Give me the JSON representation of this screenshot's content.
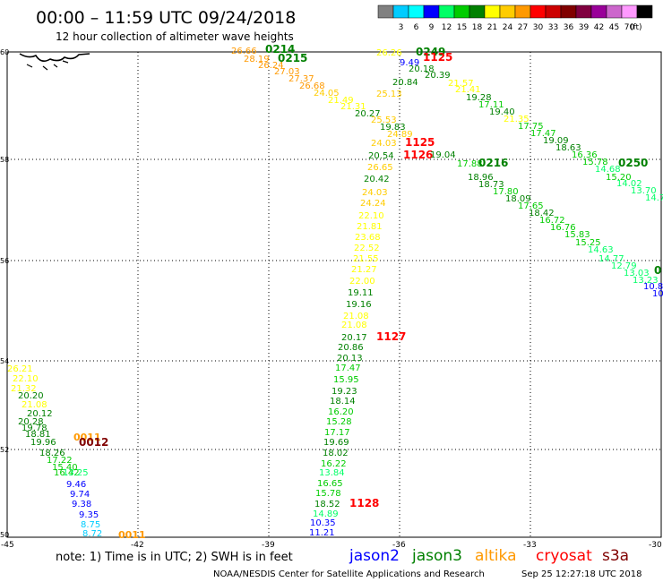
{
  "header": {
    "title": "00:00 – 11:59 UTC 09/24/2018",
    "subtitle": "12 hour collection of altimeter wave heights"
  },
  "colorbar": {
    "unit_label": "(ft)",
    "bins": [
      {
        "label": "",
        "color": "#808080"
      },
      {
        "label": "3",
        "color": "#00ccff"
      },
      {
        "label": "6",
        "color": "#00ffff"
      },
      {
        "label": "9",
        "color": "#0000ff"
      },
      {
        "label": "12",
        "color": "#00ff66"
      },
      {
        "label": "15",
        "color": "#00cc00"
      },
      {
        "label": "18",
        "color": "#008000"
      },
      {
        "label": "21",
        "color": "#ffff00"
      },
      {
        "label": "24",
        "color": "#ffcc00"
      },
      {
        "label": "27",
        "color": "#ff9900"
      },
      {
        "label": "30",
        "color": "#ff0000"
      },
      {
        "label": "33",
        "color": "#cc0000"
      },
      {
        "label": "36",
        "color": "#800000"
      },
      {
        "label": "39",
        "color": "#800040"
      },
      {
        "label": "42",
        "color": "#990099"
      },
      {
        "label": "45",
        "color": "#cc66cc"
      },
      {
        "label": "70",
        "color": "#ff99ff"
      },
      {
        "label": "",
        "color": "#000000"
      }
    ]
  },
  "map": {
    "lon_ticks": [
      "-45",
      "-42",
      "-39",
      "-36",
      "-33",
      "-30"
    ],
    "lat_ticks": [
      "60",
      "58",
      "56",
      "54",
      "52",
      "50"
    ],
    "grid": "dotted",
    "lon_range": [
      -45,
      -30
    ],
    "lat_range": [
      50,
      60
    ]
  },
  "tracks": [
    {
      "satellite": "saral/altika, jason3 (west track)",
      "time_labels": [
        {
          "text": "0011",
          "color": "#ff9900"
        },
        {
          "text": "0012",
          "color": "#800000"
        },
        {
          "text": "0011",
          "color": "#ff9900"
        }
      ],
      "values": [
        {
          "v": "26.21",
          "c": "#ffff00"
        },
        {
          "v": "22.10",
          "c": "#ffff00"
        },
        {
          "v": "21.32",
          "c": "#ffff00"
        },
        {
          "v": "20.20",
          "c": "#008000"
        },
        {
          "v": "21.08",
          "c": "#ffff00"
        },
        {
          "v": "20.12",
          "c": "#008000"
        },
        {
          "v": "20.28",
          "c": "#008000"
        },
        {
          "v": "19.78",
          "c": "#008000"
        },
        {
          "v": "18.81",
          "c": "#008000"
        },
        {
          "v": "19.96",
          "c": "#008000"
        },
        {
          "v": "18.26",
          "c": "#008000"
        },
        {
          "v": "17.22",
          "c": "#00cc00"
        },
        {
          "v": "15.40",
          "c": "#00cc00"
        },
        {
          "v": "16.42",
          "c": "#00cc00"
        },
        {
          "v": "13.25",
          "c": "#00ff66"
        },
        {
          "v": "9.46",
          "c": "#0000ff"
        },
        {
          "v": "9.74",
          "c": "#0000ff"
        },
        {
          "v": "9.38",
          "c": "#0000ff"
        },
        {
          "v": "9.35",
          "c": "#0000ff"
        },
        {
          "v": "8.75",
          "c": "#00ccff"
        },
        {
          "v": "8.72",
          "c": "#00ccff"
        }
      ]
    },
    {
      "satellite": "jason3, altika (central track)",
      "time_labels": [
        {
          "text": "0214",
          "color": "#008000"
        },
        {
          "text": "0215",
          "color": "#008000"
        }
      ],
      "values": [
        {
          "v": "26.66",
          "c": "#ff9900"
        },
        {
          "v": "28.19",
          "c": "#ff9900"
        },
        {
          "v": "26.24",
          "c": "#ff9900"
        },
        {
          "v": "27.03",
          "c": "#ff9900"
        },
        {
          "v": "27.37",
          "c": "#ff9900"
        },
        {
          "v": "26.68",
          "c": "#ff9900"
        },
        {
          "v": "24.05",
          "c": "#ffcc00"
        },
        {
          "v": "21.49",
          "c": "#ffff00"
        },
        {
          "v": "21.31",
          "c": "#ffff00"
        },
        {
          "v": "20.27",
          "c": "#008000"
        },
        {
          "v": "25.53",
          "c": "#ffcc00"
        },
        {
          "v": "19.83",
          "c": "#008000"
        },
        {
          "v": "24.89",
          "c": "#ffcc00"
        },
        {
          "v": "24.03",
          "c": "#ffcc00"
        }
      ]
    },
    {
      "satellite": "cryosat (central south track)",
      "time_labels": [
        {
          "text": "1125",
          "color": "#ff0000"
        },
        {
          "text": "1126",
          "color": "#ff0000"
        },
        {
          "text": "1127",
          "color": "#ff0000"
        },
        {
          "text": "1128",
          "color": "#ff0000"
        }
      ],
      "values": [
        {
          "v": "20.54",
          "c": "#008000"
        },
        {
          "v": "26.65",
          "c": "#ffcc00"
        },
        {
          "v": "20.42",
          "c": "#008000"
        },
        {
          "v": "24.03",
          "c": "#ffcc00"
        },
        {
          "v": "24.24",
          "c": "#ffcc00"
        },
        {
          "v": "22.10",
          "c": "#ffff00"
        },
        {
          "v": "21.81",
          "c": "#ffff00"
        },
        {
          "v": "23.68",
          "c": "#ffff00"
        },
        {
          "v": "22.52",
          "c": "#ffff00"
        },
        {
          "v": "21.55",
          "c": "#ffff00"
        },
        {
          "v": "21.27",
          "c": "#ffff00"
        },
        {
          "v": "22.00",
          "c": "#ffff00"
        },
        {
          "v": "19.11",
          "c": "#008000"
        },
        {
          "v": "19.16",
          "c": "#008000"
        },
        {
          "v": "21.08",
          "c": "#ffff00"
        },
        {
          "v": "21.08",
          "c": "#ffff00"
        },
        {
          "v": "20.17",
          "c": "#008000"
        },
        {
          "v": "20.86",
          "c": "#008000"
        },
        {
          "v": "20.13",
          "c": "#008000"
        },
        {
          "v": "17.47",
          "c": "#00cc00"
        },
        {
          "v": "15.95",
          "c": "#00cc00"
        },
        {
          "v": "19.23",
          "c": "#008000"
        },
        {
          "v": "18.14",
          "c": "#008000"
        },
        {
          "v": "16.20",
          "c": "#00cc00"
        },
        {
          "v": "15.28",
          "c": "#00cc00"
        },
        {
          "v": "17.17",
          "c": "#00cc00"
        },
        {
          "v": "19.69",
          "c": "#008000"
        },
        {
          "v": "18.02",
          "c": "#008000"
        },
        {
          "v": "16.22",
          "c": "#00cc00"
        },
        {
          "v": "13.84",
          "c": "#00ff66"
        },
        {
          "v": "16.65",
          "c": "#00cc00"
        },
        {
          "v": "15.78",
          "c": "#00cc00"
        },
        {
          "v": "18.52",
          "c": "#008000"
        },
        {
          "v": "14.89",
          "c": "#00ff66"
        },
        {
          "v": "10.35",
          "c": "#0000ff"
        },
        {
          "v": "11.21",
          "c": "#0000ff"
        }
      ]
    },
    {
      "satellite": "jason3 (east track)",
      "time_labels": [
        {
          "text": "0249",
          "color": "#008000"
        },
        {
          "text": "1125",
          "color": "#ff0000"
        },
        {
          "text": "0216",
          "color": "#008000"
        },
        {
          "text": "0250",
          "color": "#008000"
        },
        {
          "text": "0",
          "color": "#008000"
        }
      ],
      "values": [
        {
          "v": "26.26",
          "c": "#ffff00"
        },
        {
          "v": "9.49",
          "c": "#0000ff"
        },
        {
          "v": "20.18",
          "c": "#008000"
        },
        {
          "v": "20.39",
          "c": "#008000"
        },
        {
          "v": "20.84",
          "c": "#008000"
        },
        {
          "v": "25.13",
          "c": "#ffcc00"
        },
        {
          "v": "21.57",
          "c": "#ffff00"
        },
        {
          "v": "21.41",
          "c": "#ffff00"
        },
        {
          "v": "19.28",
          "c": "#008000"
        },
        {
          "v": "17.11",
          "c": "#00cc00"
        },
        {
          "v": "19.40",
          "c": "#008000"
        },
        {
          "v": "21.35",
          "c": "#ffff00"
        },
        {
          "v": "17.75",
          "c": "#00cc00"
        },
        {
          "v": "17.47",
          "c": "#00cc00"
        },
        {
          "v": "19.09",
          "c": "#008000"
        },
        {
          "v": "18.63",
          "c": "#008000"
        },
        {
          "v": "16.36",
          "c": "#00cc00"
        },
        {
          "v": "15.78",
          "c": "#00cc00"
        },
        {
          "v": "14.68",
          "c": "#00ff66"
        },
        {
          "v": "15.20",
          "c": "#00cc00"
        },
        {
          "v": "14.02",
          "c": "#00ff66"
        },
        {
          "v": "13.70",
          "c": "#00ff66"
        },
        {
          "v": "14.7",
          "c": "#00ff66"
        },
        {
          "v": "19.04",
          "c": "#008000"
        },
        {
          "v": "17.88",
          "c": "#00cc00"
        },
        {
          "v": "18.96",
          "c": "#008000"
        },
        {
          "v": "18.73",
          "c": "#008000"
        },
        {
          "v": "17.80",
          "c": "#00cc00"
        },
        {
          "v": "18.09",
          "c": "#008000"
        },
        {
          "v": "17.65",
          "c": "#00cc00"
        },
        {
          "v": "18.42",
          "c": "#008000"
        },
        {
          "v": "16.72",
          "c": "#00cc00"
        },
        {
          "v": "16.76",
          "c": "#00cc00"
        },
        {
          "v": "15.83",
          "c": "#00cc00"
        },
        {
          "v": "15.25",
          "c": "#00cc00"
        },
        {
          "v": "14.63",
          "c": "#00ff66"
        },
        {
          "v": "14.77",
          "c": "#00ff66"
        },
        {
          "v": "12.79",
          "c": "#00ff66"
        },
        {
          "v": "13.03",
          "c": "#00ff66"
        },
        {
          "v": "13.23",
          "c": "#00ff66"
        },
        {
          "v": "10.8",
          "c": "#0000ff"
        },
        {
          "v": "10",
          "c": "#0000ff"
        }
      ]
    }
  ],
  "footer": {
    "note": "note: 1) Time is in UTC; 2) SWH is in feet",
    "legend": [
      {
        "name": "jason2",
        "color": "#0000ff"
      },
      {
        "name": "jason3",
        "color": "#008000"
      },
      {
        "name": "altika",
        "color": "#ff9900"
      },
      {
        "name": "cryosat",
        "color": "#ff0000"
      },
      {
        "name": "s3a",
        "color": "#800000"
      }
    ],
    "credit": "NOAA/NESDIS Center for Satellite Applications and Research",
    "timestamp": "Sep 25 12:27:18 UTC 2018"
  }
}
